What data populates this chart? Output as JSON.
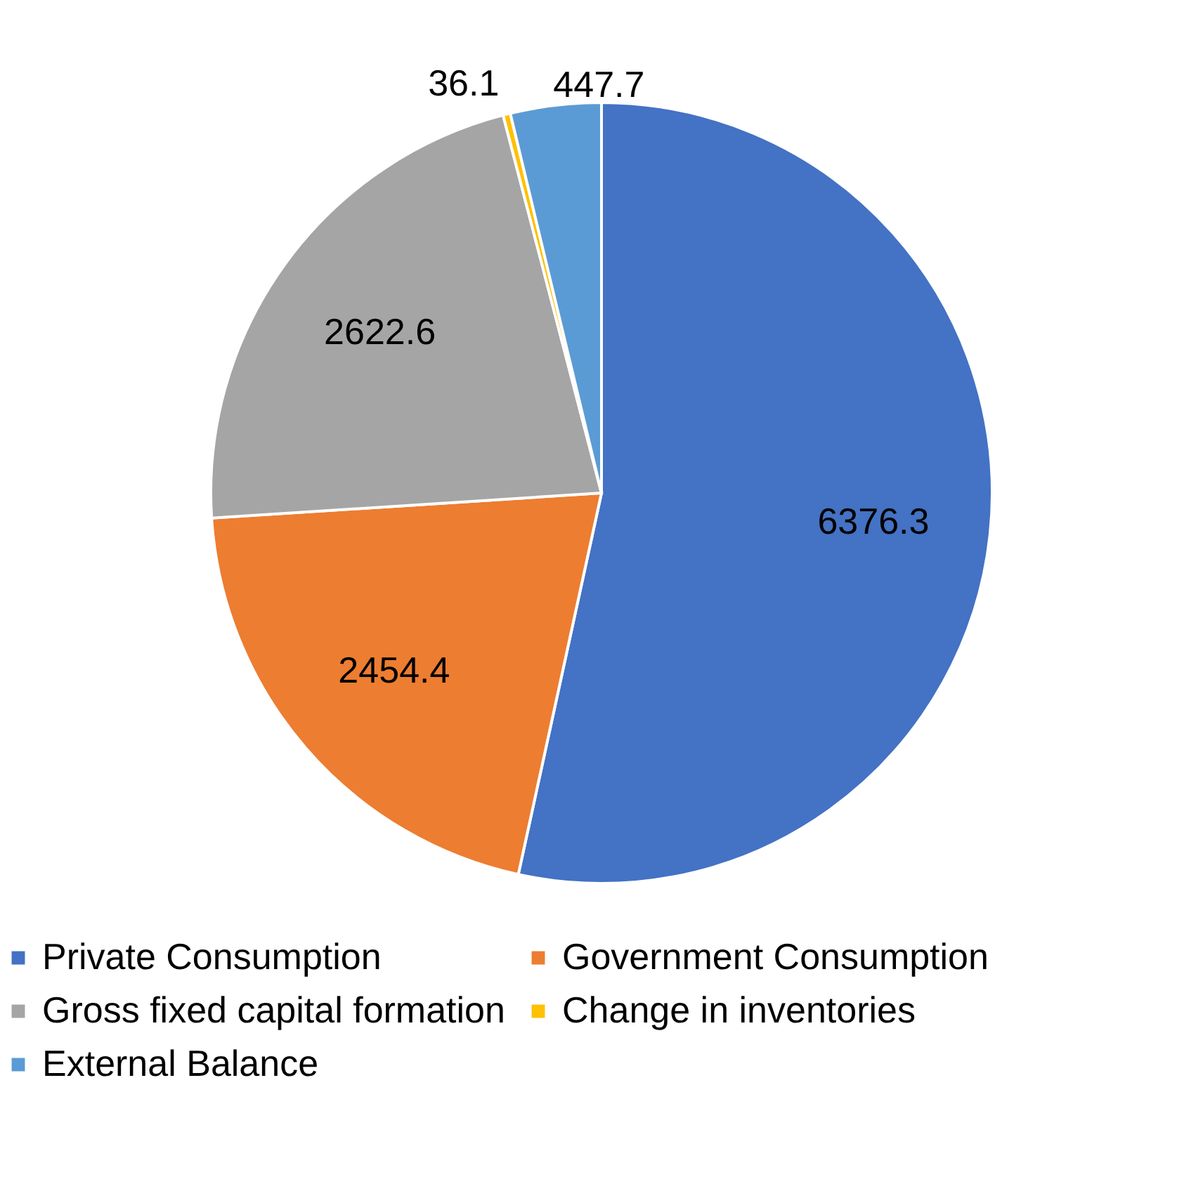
{
  "chart_data": {
    "type": "pie",
    "categories": [
      "Private Consumption",
      "Government Consumption",
      "Gross fixed capital formation",
      "Change in inventories",
      "External Balance"
    ],
    "values": [
      6376.3,
      2454.4,
      2622.6,
      36.1,
      447.7
    ],
    "colors": [
      "#4472c4",
      "#ed7d31",
      "#a5a5a5",
      "#ffc000",
      "#5b9bd5"
    ],
    "data_labels": true,
    "legend": "bottom"
  }
}
